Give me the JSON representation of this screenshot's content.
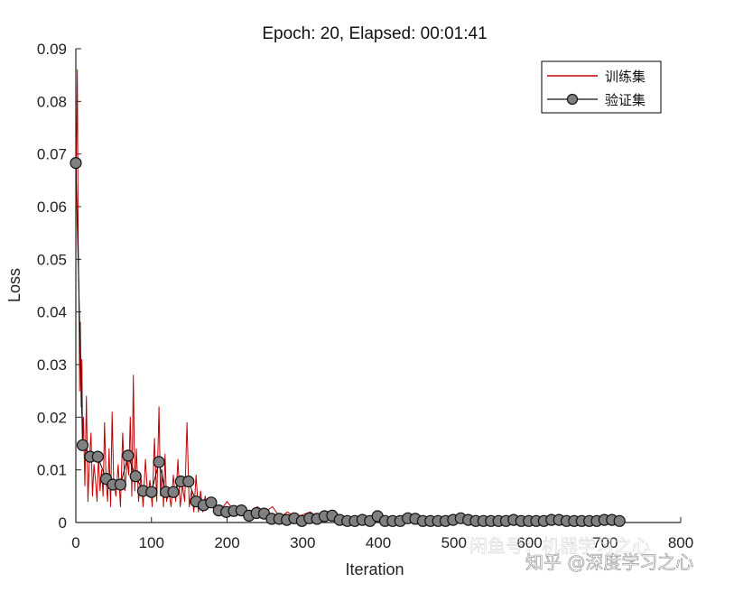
{
  "chart_data": {
    "type": "line",
    "title": "Epoch: 20, Elapsed: 00:01:41",
    "xlabel": "Iteration",
    "ylabel": "Loss",
    "xlim": [
      0,
      800
    ],
    "ylim": [
      0,
      0.09
    ],
    "xticks": [
      "0",
      "100",
      "200",
      "300",
      "400",
      "500",
      "600",
      "700",
      "800"
    ],
    "yticks": [
      "0",
      "0.01",
      "0.02",
      "0.03",
      "0.04",
      "0.05",
      "0.06",
      "0.07",
      "0.08",
      "0.09"
    ],
    "legend_position": "top-right",
    "series": [
      {
        "name": "训练集",
        "color": "#c00000",
        "marker": "none",
        "x": [
          0,
          1,
          2,
          3,
          4,
          5,
          6,
          7,
          8,
          9,
          10,
          12,
          14,
          16,
          18,
          20,
          22,
          24,
          26,
          28,
          30,
          32,
          34,
          36,
          38,
          40,
          42,
          44,
          46,
          48,
          50,
          53,
          56,
          59,
          62,
          65,
          68,
          70,
          72,
          74,
          76,
          78,
          80,
          83,
          86,
          89,
          92,
          95,
          98,
          101,
          104,
          107,
          110,
          112,
          114,
          116,
          118,
          120,
          123,
          126,
          129,
          132,
          135,
          138,
          141,
          144,
          147,
          150,
          153,
          156,
          159,
          162,
          165,
          168,
          171,
          174,
          180,
          190,
          200,
          210,
          220,
          230,
          240,
          250,
          260,
          270,
          280,
          290,
          300,
          310,
          320,
          330,
          340,
          350,
          360,
          380,
          400,
          420,
          440,
          460,
          480,
          500,
          520,
          540,
          560,
          580,
          600,
          620,
          640,
          660,
          680,
          700,
          720
        ],
        "y": [
          0.06,
          0.072,
          0.086,
          0.055,
          0.045,
          0.025,
          0.038,
          0.022,
          0.031,
          0.015,
          0.02,
          0.007,
          0.024,
          0.004,
          0.012,
          0.017,
          0.005,
          0.011,
          0.008,
          0.004,
          0.013,
          0.006,
          0.01,
          0.005,
          0.019,
          0.008,
          0.004,
          0.014,
          0.003,
          0.021,
          0.008,
          0.005,
          0.011,
          0.003,
          0.017,
          0.006,
          0.012,
          0.009,
          0.02,
          0.005,
          0.028,
          0.006,
          0.014,
          0.004,
          0.009,
          0.003,
          0.012,
          0.005,
          0.008,
          0.003,
          0.016,
          0.004,
          0.022,
          0.005,
          0.01,
          0.003,
          0.013,
          0.004,
          0.006,
          0.003,
          0.009,
          0.004,
          0.012,
          0.003,
          0.007,
          0.004,
          0.019,
          0.003,
          0.006,
          0.002,
          0.009,
          0.002,
          0.006,
          0.002,
          0.005,
          0.003,
          0.003,
          0.002,
          0.004,
          0.002,
          0.003,
          0.0015,
          0.003,
          0.002,
          0.003,
          0.001,
          0.002,
          0.001,
          0.0015,
          0.002,
          0.001,
          0.0015,
          0.001,
          0.0012,
          0.001,
          0.0009,
          0.0012,
          0.0008,
          0.001,
          0.0007,
          0.0009,
          0.0006,
          0.0008,
          0.0006,
          0.0007,
          0.0005,
          0.0007,
          0.0005,
          0.0006,
          0.0005,
          0.0006,
          0.0005,
          0.0005
        ]
      },
      {
        "name": "验证集",
        "color": "#111111",
        "marker": "circle",
        "marker_fill": "#808080",
        "x": [
          0,
          9,
          19,
          29,
          40,
          49,
          59,
          69,
          79,
          89,
          100,
          110,
          119,
          129,
          139,
          149,
          159,
          169,
          179,
          189,
          199,
          209,
          219,
          229,
          239,
          249,
          259,
          269,
          279,
          289,
          299,
          309,
          319,
          329,
          339,
          349,
          359,
          369,
          379,
          389,
          399,
          409,
          419,
          429,
          439,
          449,
          459,
          469,
          479,
          489,
          499,
          509,
          519,
          529,
          539,
          549,
          559,
          569,
          579,
          589,
          599,
          609,
          619,
          629,
          639,
          649,
          659,
          669,
          679,
          689,
          699,
          709,
          719
        ],
        "y": [
          0.0683,
          0.0147,
          0.0125,
          0.0125,
          0.0083,
          0.0072,
          0.0072,
          0.0127,
          0.0088,
          0.006,
          0.0058,
          0.0115,
          0.0058,
          0.0058,
          0.0078,
          0.0078,
          0.004,
          0.0033,
          0.0038,
          0.0023,
          0.002,
          0.0022,
          0.0023,
          0.0013,
          0.0018,
          0.0017,
          0.0007,
          0.0007,
          0.0005,
          0.0008,
          0.0003,
          0.0008,
          0.0007,
          0.0012,
          0.0013,
          0.0005,
          0.0003,
          0.0003,
          0.0005,
          0.0003,
          0.0012,
          0.0003,
          0.0003,
          0.0003,
          0.0008,
          0.0007,
          0.0003,
          0.0003,
          0.0003,
          0.0003,
          0.0005,
          0.0008,
          0.0005,
          0.0003,
          0.0003,
          0.0003,
          0.0003,
          0.0003,
          0.0005,
          0.0003,
          0.0003,
          0.0003,
          0.0003,
          0.0005,
          0.0005,
          0.0003,
          0.0003,
          0.0003,
          0.0003,
          0.0003,
          0.0005,
          0.0005,
          0.0003
        ]
      }
    ]
  },
  "watermark": {
    "bottom_text": "知乎 @深度学习之心",
    "overlay_text": "闲鱼号：机器学习之心"
  }
}
